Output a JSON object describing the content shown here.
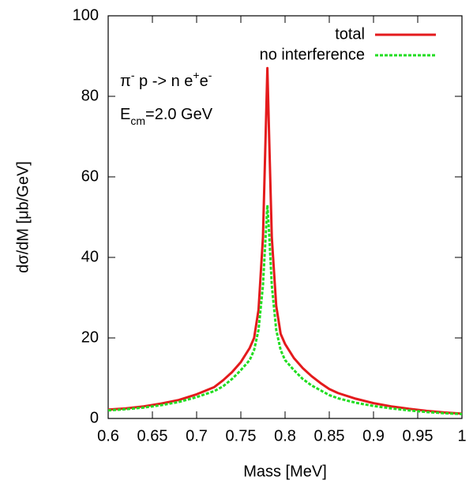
{
  "chart_data": {
    "type": "line",
    "xlabel": "Mass [MeV]",
    "ylabel": "dσ/dM [μb/GeV]",
    "annotations": [
      [
        "π",
        "-",
        " p -> n e",
        "+",
        "e",
        "-"
      ],
      [
        "E",
        "cm",
        "=2.0 GeV"
      ]
    ],
    "x": [
      0.6,
      0.62,
      0.64,
      0.66,
      0.68,
      0.7,
      0.72,
      0.73,
      0.74,
      0.75,
      0.76,
      0.765,
      0.77,
      0.775,
      0.778,
      0.78,
      0.782,
      0.785,
      0.79,
      0.795,
      0.8,
      0.81,
      0.82,
      0.83,
      0.84,
      0.85,
      0.86,
      0.88,
      0.9,
      0.92,
      0.94,
      0.96,
      0.98,
      1.0
    ],
    "series": [
      {
        "name": "total",
        "color": "#e41a1c",
        "dashed": false,
        "values": [
          2.2,
          2.5,
          3.0,
          3.7,
          4.6,
          6.0,
          7.8,
          9.5,
          11.5,
          14,
          17.5,
          20,
          27,
          45,
          70,
          87,
          70,
          45,
          28,
          21,
          18.5,
          15,
          12.5,
          10.5,
          8.8,
          7.3,
          6.3,
          4.9,
          3.8,
          3.0,
          2.4,
          1.9,
          1.5,
          1.2
        ]
      },
      {
        "name": "no interference",
        "color": "#22dd22",
        "dashed": true,
        "values": [
          2.0,
          2.3,
          2.7,
          3.3,
          4.1,
          5.3,
          6.8,
          8.0,
          9.8,
          12,
          14.5,
          17,
          22,
          33,
          45,
          53,
          46,
          33,
          22,
          17,
          14.5,
          12,
          9.8,
          8.2,
          7,
          5.8,
          5,
          3.9,
          3.1,
          2.5,
          2.0,
          1.6,
          1.3,
          1.1
        ]
      }
    ],
    "xlim": [
      0.6,
      1
    ],
    "xticks": [
      0.6,
      0.65,
      0.7,
      0.75,
      0.8,
      0.85,
      0.9,
      0.95,
      1
    ],
    "ylim": [
      0,
      100
    ],
    "yticks": [
      0,
      20,
      40,
      60,
      80,
      100
    ],
    "legend": "top-right"
  }
}
